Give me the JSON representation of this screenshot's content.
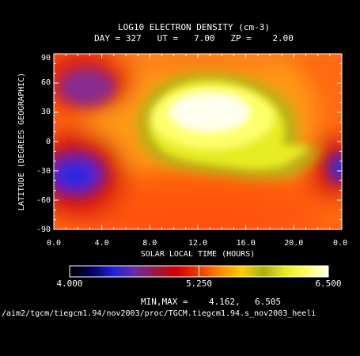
{
  "title": "LOG10 ELECTRON DENSITY (cm-3)",
  "subtitle": "DAY = 327   UT =   7.00   ZP =    2.00",
  "chart_data": {
    "type": "heatmap",
    "xlabel": "SOLAR LOCAL TIME (HOURS)",
    "ylabel": "LATITUDE (DEGREES GEOGRAPHIC)",
    "xlim": [
      0,
      24
    ],
    "ylim": [
      -90,
      90
    ],
    "x_ticks": [
      "0.0",
      "4.0",
      "8.0",
      "12.0",
      "16.0",
      "20.0",
      "0.0"
    ],
    "y_ticks": [
      "90",
      "60",
      "30",
      "0",
      "-30",
      "-60",
      "-90"
    ],
    "x_minor_step": 1,
    "y_minor_step": 10,
    "colorbar": {
      "min_label": "4.000",
      "mid_label": "5.250",
      "max_label": "6.500",
      "range": [
        4.0,
        6.5
      ],
      "colors": [
        "#000000",
        "#00005a",
        "#2020d8",
        "#6a2aa8",
        "#9a1840",
        "#d60000",
        "#f03a00",
        "#ff8a00",
        "#ffd000",
        "#aab010",
        "#e8ec20",
        "#ffff60",
        "#ffffff"
      ]
    },
    "min_max_label": "MIN,MAX =",
    "min_value": "4.162,",
    "max_value": "6.505",
    "features": [
      {
        "lt": 12.0,
        "lat": 12,
        "value": 6.5,
        "kind": "equatorial-maximum"
      },
      {
        "lt": 2.5,
        "lat": -30,
        "value": 4.3,
        "kind": "south-night-minimum"
      },
      {
        "lt": 3.5,
        "lat": 50,
        "value": 4.8,
        "kind": "north-night-minimum"
      },
      {
        "lt": 23.8,
        "lat": -18,
        "value": 4.4,
        "kind": "south-night-minimum-wrap"
      }
    ]
  },
  "footer_path": "/aim2/tgcm/tiegcm1.94/nov2003/proc/TGCM.tiegcm1.94.s_nov2003_heeli"
}
